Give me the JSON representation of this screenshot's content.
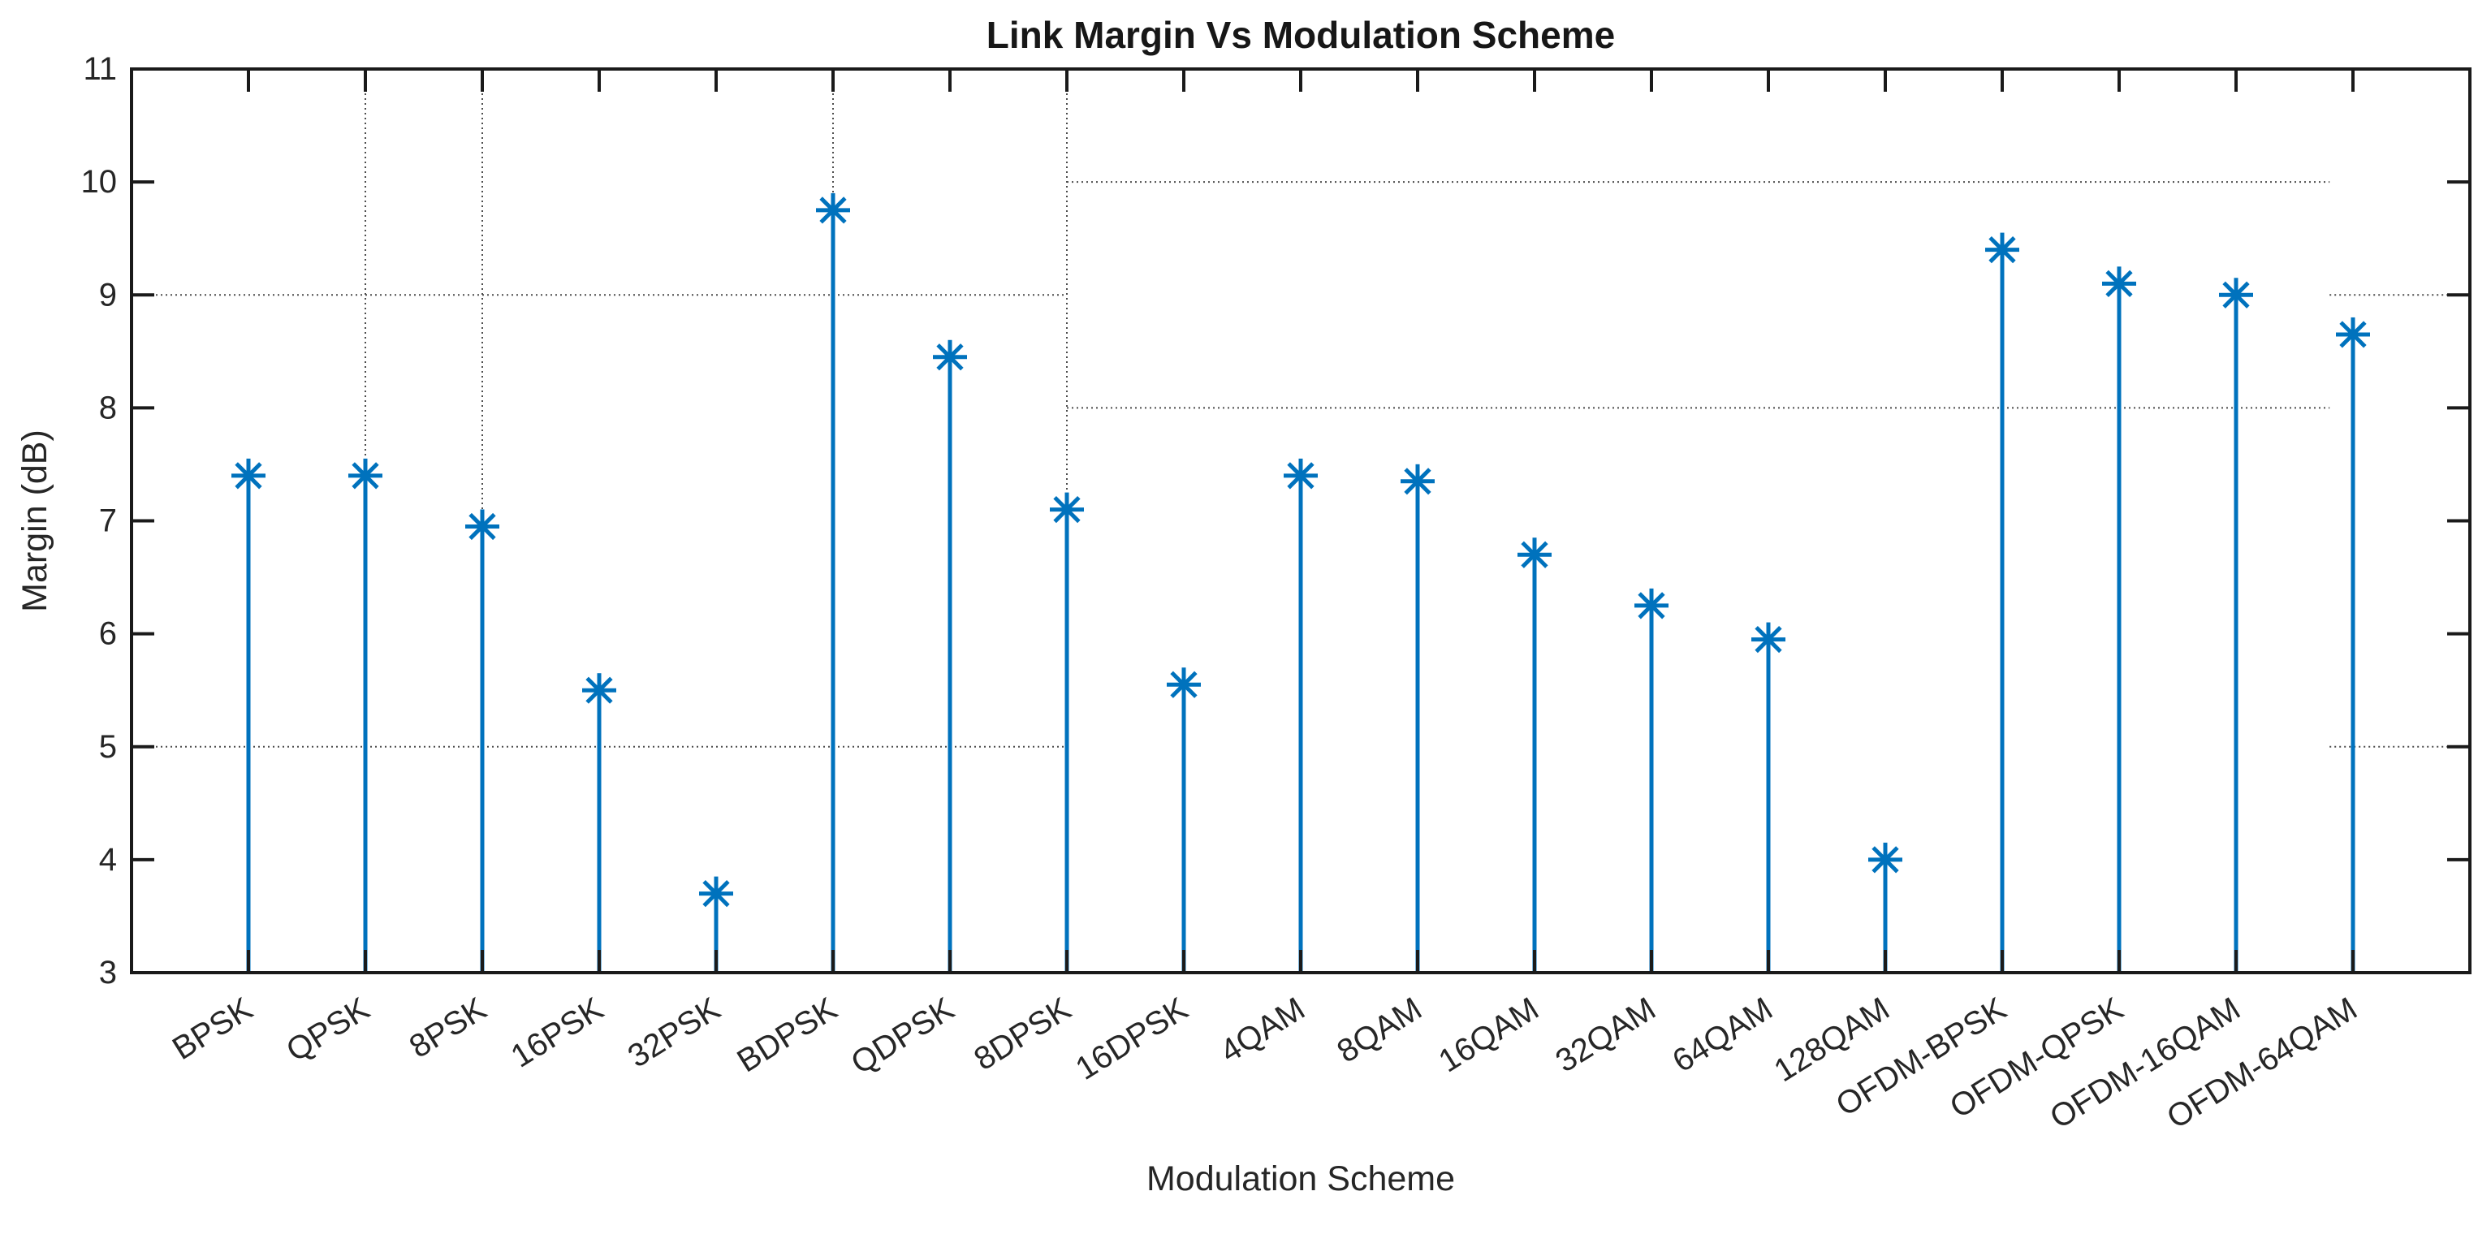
{
  "figure": {
    "title": "Link Margin Vs Modulation Scheme",
    "xlabel": "Modulation Scheme",
    "ylabel": "Margin (dB)"
  },
  "chart_data": {
    "type": "stem",
    "title": "Link Margin Vs Modulation Scheme",
    "xlabel": "Modulation Scheme",
    "ylabel": "Margin (dB)",
    "categories": [
      "BPSK",
      "QPSK",
      "8PSK",
      "16PSK",
      "32PSK",
      "BDPSK",
      "QDPSK",
      "8DPSK",
      "16DPSK",
      "4QAM",
      "8QAM",
      "16QAM",
      "32QAM",
      "64QAM",
      "128QAM",
      "OFDM-BPSK",
      "OFDM-QPSK",
      "OFDM-16QAM",
      "OFDM-64QAM"
    ],
    "values": [
      7.4,
      7.4,
      6.95,
      5.5,
      3.7,
      9.75,
      8.45,
      7.1,
      5.55,
      7.4,
      7.35,
      6.7,
      6.25,
      5.95,
      4.0,
      9.4,
      9.1,
      9.0,
      8.65
    ],
    "ylim": [
      3,
      11
    ],
    "yticks": [
      3,
      4,
      5,
      6,
      7,
      8,
      9,
      10,
      11
    ],
    "x_axis_units": [
      0,
      20
    ],
    "x_tick_angle_deg": -32,
    "legend": null,
    "marker": "asterisk",
    "grid": "partial-dotted",
    "grid_segments": {
      "horizontal": [
        {
          "y": 9,
          "x1": 0,
          "x2": 8
        },
        {
          "y": 5,
          "x1": 0,
          "x2": 8
        },
        {
          "y": 10,
          "x1": 8,
          "x2": 18.8
        },
        {
          "y": 8,
          "x1": 8,
          "x2": 18.8
        },
        {
          "y": 9,
          "x1": 18.8,
          "x2": 20
        },
        {
          "y": 5,
          "x1": 18.8,
          "x2": 20
        }
      ],
      "vertical": [
        {
          "x": 2,
          "y1": 11,
          "y2": 7.4
        },
        {
          "x": 3,
          "y1": 11,
          "y2": 6.95
        },
        {
          "x": 6,
          "y1": 11,
          "y2": 9.75
        },
        {
          "x": 8,
          "y1": 11,
          "y2": 7.1
        }
      ]
    },
    "colors": {
      "stem": "#0072BD",
      "axis": "#1a1a1a",
      "tick_label": "#262626",
      "grid": "#4d4d4d",
      "background": "#ffffff"
    }
  }
}
